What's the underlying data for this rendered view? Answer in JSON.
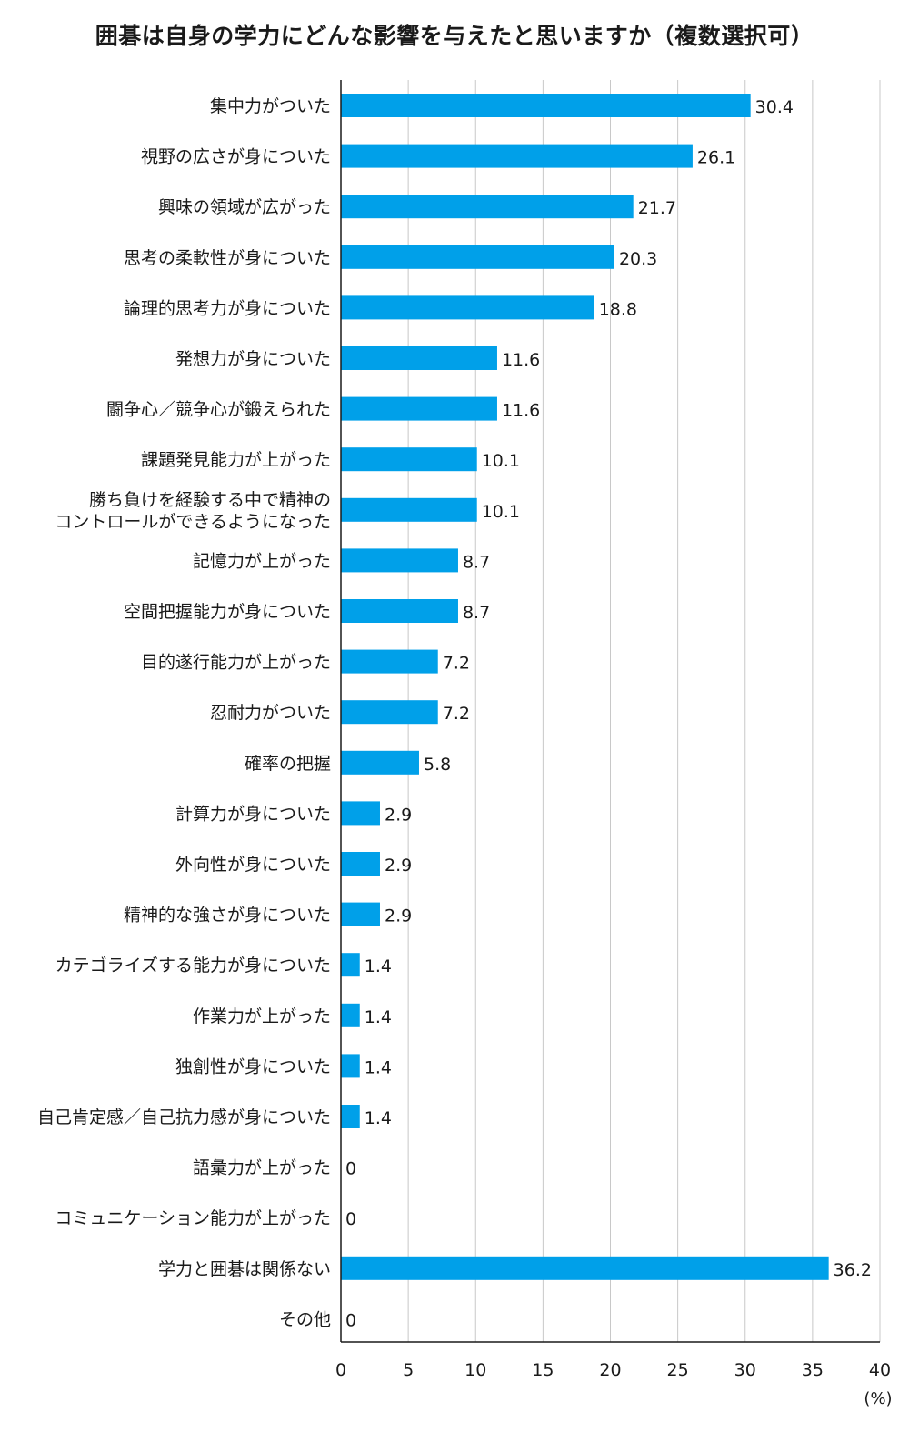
{
  "title": "囲碁は自身の学力にどんな影響を与えたと思いますか（複数選択可）",
  "chart_data": {
    "type": "bar",
    "orientation": "horizontal",
    "title": "囲碁は自身の学力にどんな影響を与えたと思いますか（複数選択可）",
    "categories": [
      [
        "集中力がついた"
      ],
      [
        "視野の広さが身についた"
      ],
      [
        "興味の領域が広がった"
      ],
      [
        "思考の柔軟性が身についた"
      ],
      [
        "論理的思考力が身についた"
      ],
      [
        "発想力が身についた"
      ],
      [
        "闘争心／競争心が鍛えられた"
      ],
      [
        "課題発見能力が上がった"
      ],
      [
        "勝ち負けを経験する中で精神の",
        "コントロールができるようになった"
      ],
      [
        "記憶力が上がった"
      ],
      [
        "空間把握能力が身についた"
      ],
      [
        "目的遂行能力が上がった"
      ],
      [
        "忍耐力がついた"
      ],
      [
        "確率の把握"
      ],
      [
        "計算力が身についた"
      ],
      [
        "外向性が身についた"
      ],
      [
        "精神的な強さが身についた"
      ],
      [
        "カテゴライズする能力が身についた"
      ],
      [
        "作業力が上がった"
      ],
      [
        "独創性が身についた"
      ],
      [
        "自己肯定感／自己抗力感が身についた"
      ],
      [
        "語彙力が上がった"
      ],
      [
        "コミュニケーション能力が上がった"
      ],
      [
        "学力と囲碁は関係ない"
      ],
      [
        "その他"
      ]
    ],
    "values": [
      30.4,
      26.1,
      21.7,
      20.3,
      18.8,
      11.6,
      11.6,
      10.1,
      10.1,
      8.7,
      8.7,
      7.2,
      7.2,
      5.8,
      2.9,
      2.9,
      2.9,
      1.4,
      1.4,
      1.4,
      1.4,
      0,
      0,
      36.2,
      0
    ],
    "value_labels": [
      "30.4",
      "26.1",
      "21.7",
      "20.3",
      "18.8",
      "11.6",
      "11.6",
      "10.1",
      "10.1",
      "8.7",
      "8.7",
      "7.2",
      "7.2",
      "5.8",
      "2.9",
      "2.9",
      "2.9",
      "1.4",
      "1.4",
      "1.4",
      "1.4",
      "0",
      "0",
      "36.2",
      "0"
    ],
    "xlim": [
      0,
      40
    ],
    "xticks": [
      "0",
      "5",
      "10",
      "15",
      "20",
      "25",
      "30",
      "35",
      "40"
    ],
    "unit_label": "(%)",
    "grid": true,
    "bar_color": "#00a0e9",
    "grid_color": "#c8c8c8",
    "axis_color": "#1a1a1a"
  }
}
